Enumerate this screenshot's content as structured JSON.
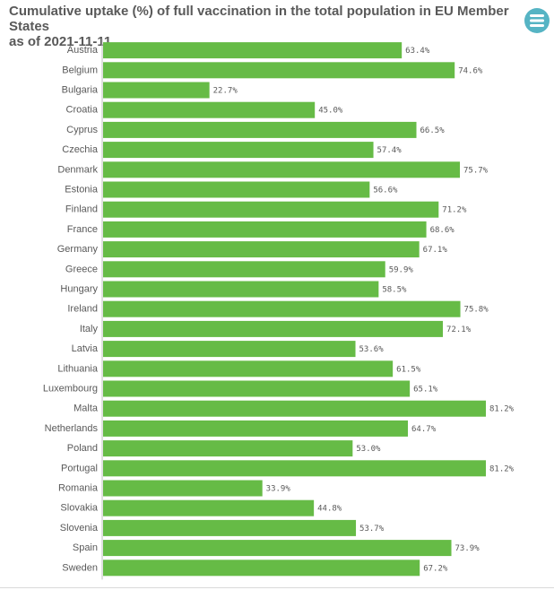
{
  "header": {
    "title_line1": "Cumulative uptake (%) of full vaccination in the total population in EU Member States",
    "title_line2": "as of 2021-11-11",
    "menu_icon": "hamburger-menu-icon",
    "menu_color": "#56b4c4"
  },
  "chart_data": {
    "type": "bar",
    "orientation": "horizontal",
    "title": "Cumulative uptake (%) of full vaccination in the total population in EU Member States as of 2021-11-11",
    "categories": [
      "Austria",
      "Belgium",
      "Bulgaria",
      "Croatia",
      "Cyprus",
      "Czechia",
      "Denmark",
      "Estonia",
      "Finland",
      "France",
      "Germany",
      "Greece",
      "Hungary",
      "Ireland",
      "Italy",
      "Latvia",
      "Lithuania",
      "Luxembourg",
      "Malta",
      "Netherlands",
      "Poland",
      "Portugal",
      "Romania",
      "Slovakia",
      "Slovenia",
      "Spain",
      "Sweden"
    ],
    "values": [
      63.4,
      74.6,
      22.7,
      45.0,
      66.5,
      57.4,
      75.7,
      56.6,
      71.2,
      68.6,
      67.1,
      59.9,
      58.5,
      75.8,
      72.1,
      53.6,
      61.5,
      65.1,
      81.2,
      64.7,
      53.0,
      81.2,
      33.9,
      44.8,
      53.7,
      73.9,
      67.2
    ],
    "value_labels": [
      "63.4%",
      "74.6%",
      "22.7%",
      "45.0%",
      "66.5%",
      "57.4%",
      "75.7%",
      "56.6%",
      "71.2%",
      "68.6%",
      "67.1%",
      "59.9%",
      "58.5%",
      "75.8%",
      "72.1%",
      "53.6%",
      "61.5%",
      "65.1%",
      "81.2%",
      "64.7%",
      "53.0%",
      "81.2%",
      "33.9%",
      "44.8%",
      "53.7%",
      "73.9%",
      "67.2%"
    ],
    "xlim": [
      0,
      81.2
    ],
    "bar_color": "#66bb46",
    "axis_color": "#bfbfbf",
    "grid": false,
    "legend": "none"
  }
}
